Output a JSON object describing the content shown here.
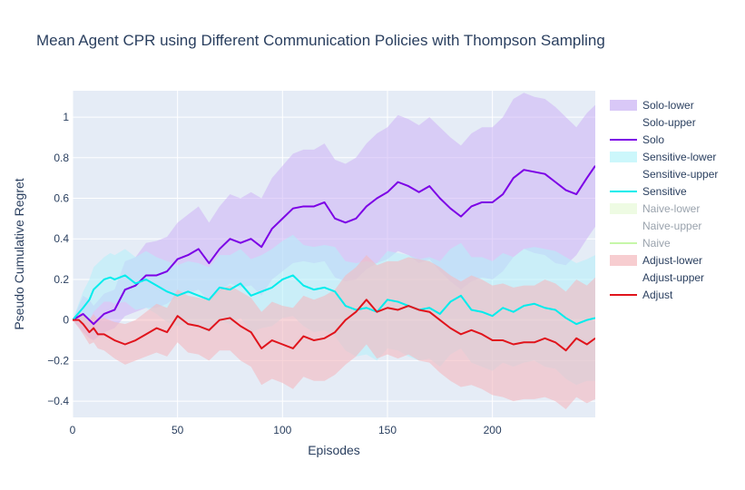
{
  "chart_data": {
    "type": "line",
    "title": "Mean Agent CPR using Different Communication Policies with Thompson Sampling",
    "xlabel": "Episodes",
    "ylabel": "Pseudo Cumulative Regret",
    "xlim": [
      0,
      249
    ],
    "ylim": [
      -0.48,
      1.13
    ],
    "x_ticks": [
      0,
      50,
      100,
      150,
      200
    ],
    "x_tick_labels": [
      "0",
      "50",
      "100",
      "150",
      "200"
    ],
    "y_ticks": [
      -0.4,
      -0.2,
      0,
      0.2,
      0.4,
      0.6,
      0.8,
      1
    ],
    "y_tick_labels": [
      "−0.4",
      "−0.2",
      "0",
      "0.2",
      "0.4",
      "0.6",
      "0.8",
      "1"
    ],
    "grid": true,
    "legend_position": "right",
    "background": "#e5ecf6",
    "legend": [
      {
        "label": "Solo-lower",
        "kind": "band",
        "color": "#d9c8f7",
        "muted": false
      },
      {
        "label": "Solo-upper",
        "kind": "none",
        "color": "#ffffff",
        "muted": false
      },
      {
        "label": "Solo",
        "kind": "line",
        "color": "#7c00e6",
        "muted": false
      },
      {
        "label": "Sensitive-lower",
        "kind": "band",
        "color": "#ccf7fb",
        "muted": false
      },
      {
        "label": "Sensitive-upper",
        "kind": "none",
        "color": "#ffffff",
        "muted": false
      },
      {
        "label": "Sensitive",
        "kind": "line",
        "color": "#00ecec",
        "muted": false
      },
      {
        "label": "Naive-lower",
        "kind": "band",
        "color": "#eefbe3",
        "muted": true
      },
      {
        "label": "Naive-upper",
        "kind": "none",
        "color": "#ffffff",
        "muted": true
      },
      {
        "label": "Naive",
        "kind": "line",
        "color": "#c6f7a8",
        "muted": true
      },
      {
        "label": "Adjust-lower",
        "kind": "band",
        "color": "#f7cdd0",
        "muted": false
      },
      {
        "label": "Adjust-upper",
        "kind": "none",
        "color": "#ffffff",
        "muted": false
      },
      {
        "label": "Adjust",
        "kind": "line",
        "color": "#e0141c",
        "muted": false
      }
    ],
    "series": [
      {
        "name": "Solo",
        "color": "#7c00e6",
        "band_color": "#cdb3f5",
        "band_opacity": 0.55,
        "x": [
          0,
          5,
          8,
          10,
          15,
          20,
          25,
          30,
          35,
          40,
          45,
          50,
          55,
          60,
          65,
          70,
          75,
          80,
          85,
          90,
          95,
          100,
          105,
          110,
          115,
          120,
          125,
          130,
          135,
          140,
          145,
          150,
          155,
          160,
          165,
          170,
          175,
          180,
          185,
          190,
          195,
          200,
          205,
          210,
          215,
          220,
          225,
          230,
          235,
          240,
          245,
          249
        ],
        "values": [
          0.0,
          0.03,
          0.0,
          -0.02,
          0.03,
          0.05,
          0.15,
          0.17,
          0.22,
          0.22,
          0.24,
          0.3,
          0.32,
          0.35,
          0.28,
          0.35,
          0.4,
          0.38,
          0.4,
          0.36,
          0.45,
          0.5,
          0.55,
          0.56,
          0.56,
          0.58,
          0.5,
          0.48,
          0.5,
          0.56,
          0.6,
          0.63,
          0.68,
          0.66,
          0.63,
          0.66,
          0.6,
          0.55,
          0.51,
          0.56,
          0.58,
          0.58,
          0.62,
          0.7,
          0.74,
          0.73,
          0.72,
          0.68,
          0.64,
          0.62,
          0.7,
          0.76
        ],
        "lower": [
          0.0,
          -0.06,
          -0.09,
          -0.1,
          -0.06,
          -0.04,
          0.02,
          0.04,
          0.06,
          0.06,
          0.08,
          0.12,
          0.13,
          0.15,
          0.09,
          0.14,
          0.18,
          0.16,
          0.17,
          0.12,
          0.2,
          0.24,
          0.28,
          0.29,
          0.28,
          0.29,
          0.21,
          0.19,
          0.2,
          0.25,
          0.28,
          0.3,
          0.34,
          0.32,
          0.28,
          0.3,
          0.24,
          0.19,
          0.15,
          0.19,
          0.21,
          0.2,
          0.24,
          0.31,
          0.35,
          0.33,
          0.32,
          0.28,
          0.27,
          0.32,
          0.4,
          0.46
        ],
        "upper": [
          0.0,
          0.12,
          0.1,
          0.07,
          0.13,
          0.15,
          0.29,
          0.31,
          0.38,
          0.39,
          0.41,
          0.48,
          0.52,
          0.56,
          0.48,
          0.56,
          0.62,
          0.6,
          0.63,
          0.6,
          0.7,
          0.76,
          0.82,
          0.84,
          0.84,
          0.87,
          0.79,
          0.77,
          0.8,
          0.87,
          0.92,
          0.95,
          1.01,
          0.99,
          0.96,
          1.0,
          0.95,
          0.9,
          0.86,
          0.92,
          0.95,
          0.95,
          1.0,
          1.09,
          1.12,
          1.1,
          1.09,
          1.05,
          1.0,
          0.95,
          1.02,
          1.06
        ]
      },
      {
        "name": "Sensitive",
        "color": "#00ecec",
        "band_color": "#b4f1fa",
        "band_opacity": 0.55,
        "x": [
          0,
          5,
          8,
          10,
          13,
          15,
          18,
          20,
          25,
          30,
          35,
          40,
          45,
          50,
          55,
          60,
          65,
          70,
          75,
          80,
          85,
          90,
          95,
          100,
          105,
          110,
          115,
          120,
          125,
          130,
          135,
          140,
          145,
          150,
          155,
          160,
          165,
          170,
          175,
          180,
          185,
          190,
          195,
          200,
          205,
          210,
          215,
          220,
          225,
          230,
          235,
          240,
          245,
          249
        ],
        "values": [
          0.0,
          0.06,
          0.1,
          0.15,
          0.18,
          0.2,
          0.21,
          0.2,
          0.22,
          0.18,
          0.2,
          0.17,
          0.14,
          0.12,
          0.14,
          0.12,
          0.1,
          0.16,
          0.15,
          0.18,
          0.12,
          0.14,
          0.16,
          0.2,
          0.22,
          0.17,
          0.15,
          0.16,
          0.14,
          0.07,
          0.05,
          0.06,
          0.04,
          0.1,
          0.09,
          0.07,
          0.05,
          0.06,
          0.03,
          0.09,
          0.12,
          0.05,
          0.04,
          0.02,
          0.06,
          0.04,
          0.07,
          0.08,
          0.06,
          0.05,
          0.01,
          -0.02,
          0.0,
          0.01
        ],
        "lower": [
          0.0,
          -0.02,
          0.0,
          0.04,
          0.07,
          0.09,
          0.09,
          0.08,
          0.09,
          0.05,
          0.06,
          0.03,
          -0.01,
          -0.03,
          -0.01,
          -0.04,
          -0.06,
          0.0,
          -0.02,
          0.01,
          -0.06,
          -0.04,
          -0.03,
          0.01,
          0.02,
          -0.03,
          -0.06,
          -0.05,
          -0.08,
          -0.15,
          -0.18,
          -0.17,
          -0.2,
          -0.14,
          -0.15,
          -0.18,
          -0.2,
          -0.19,
          -0.23,
          -0.17,
          -0.14,
          -0.21,
          -0.23,
          -0.25,
          -0.21,
          -0.23,
          -0.21,
          -0.2,
          -0.23,
          -0.24,
          -0.29,
          -0.32,
          -0.3,
          -0.3
        ],
        "upper": [
          0.0,
          0.14,
          0.2,
          0.26,
          0.29,
          0.31,
          0.33,
          0.32,
          0.35,
          0.31,
          0.34,
          0.31,
          0.29,
          0.27,
          0.29,
          0.28,
          0.26,
          0.32,
          0.32,
          0.35,
          0.3,
          0.32,
          0.35,
          0.39,
          0.42,
          0.37,
          0.36,
          0.37,
          0.36,
          0.29,
          0.28,
          0.29,
          0.28,
          0.34,
          0.33,
          0.32,
          0.3,
          0.31,
          0.29,
          0.35,
          0.38,
          0.31,
          0.31,
          0.29,
          0.33,
          0.31,
          0.35,
          0.36,
          0.35,
          0.34,
          0.31,
          0.28,
          0.3,
          0.32
        ]
      },
      {
        "name": "Adjust",
        "color": "#e0141c",
        "band_color": "#f4b9bf",
        "band_opacity": 0.6,
        "x": [
          0,
          3,
          5,
          8,
          10,
          12,
          15,
          20,
          25,
          30,
          35,
          40,
          45,
          50,
          55,
          60,
          65,
          70,
          75,
          80,
          85,
          90,
          95,
          100,
          105,
          110,
          115,
          120,
          125,
          130,
          135,
          140,
          145,
          150,
          155,
          160,
          165,
          170,
          175,
          180,
          185,
          190,
          195,
          200,
          205,
          210,
          215,
          220,
          225,
          230,
          235,
          240,
          245,
          249
        ],
        "values": [
          0.0,
          0.0,
          -0.02,
          -0.06,
          -0.04,
          -0.07,
          -0.07,
          -0.1,
          -0.12,
          -0.1,
          -0.07,
          -0.04,
          -0.06,
          0.02,
          -0.02,
          -0.03,
          -0.05,
          0.0,
          0.01,
          -0.03,
          -0.06,
          -0.14,
          -0.1,
          -0.12,
          -0.14,
          -0.08,
          -0.1,
          -0.09,
          -0.06,
          0.0,
          0.04,
          0.1,
          0.04,
          0.06,
          0.05,
          0.07,
          0.05,
          0.04,
          0.0,
          -0.04,
          -0.07,
          -0.05,
          -0.07,
          -0.1,
          -0.1,
          -0.12,
          -0.11,
          -0.11,
          -0.09,
          -0.11,
          -0.15,
          -0.09,
          -0.12,
          -0.09
        ],
        "lower": [
          0.0,
          -0.04,
          -0.07,
          -0.12,
          -0.11,
          -0.14,
          -0.15,
          -0.19,
          -0.22,
          -0.2,
          -0.18,
          -0.16,
          -0.18,
          -0.11,
          -0.16,
          -0.17,
          -0.2,
          -0.15,
          -0.15,
          -0.2,
          -0.23,
          -0.32,
          -0.29,
          -0.31,
          -0.34,
          -0.28,
          -0.3,
          -0.3,
          -0.27,
          -0.22,
          -0.18,
          -0.12,
          -0.19,
          -0.17,
          -0.19,
          -0.17,
          -0.2,
          -0.21,
          -0.26,
          -0.3,
          -0.33,
          -0.32,
          -0.34,
          -0.37,
          -0.38,
          -0.4,
          -0.39,
          -0.39,
          -0.38,
          -0.4,
          -0.44,
          -0.38,
          -0.41,
          -0.39
        ],
        "upper": [
          0.0,
          0.04,
          0.03,
          0.0,
          0.03,
          0.0,
          0.01,
          -0.01,
          -0.02,
          0.0,
          0.04,
          0.08,
          0.06,
          0.15,
          0.12,
          0.11,
          0.1,
          0.15,
          0.17,
          0.14,
          0.11,
          0.04,
          0.09,
          0.07,
          0.06,
          0.12,
          0.1,
          0.12,
          0.15,
          0.22,
          0.26,
          0.32,
          0.27,
          0.29,
          0.29,
          0.31,
          0.3,
          0.29,
          0.26,
          0.22,
          0.19,
          0.22,
          0.2,
          0.17,
          0.18,
          0.16,
          0.17,
          0.17,
          0.2,
          0.18,
          0.14,
          0.2,
          0.17,
          0.21
        ]
      }
    ]
  }
}
